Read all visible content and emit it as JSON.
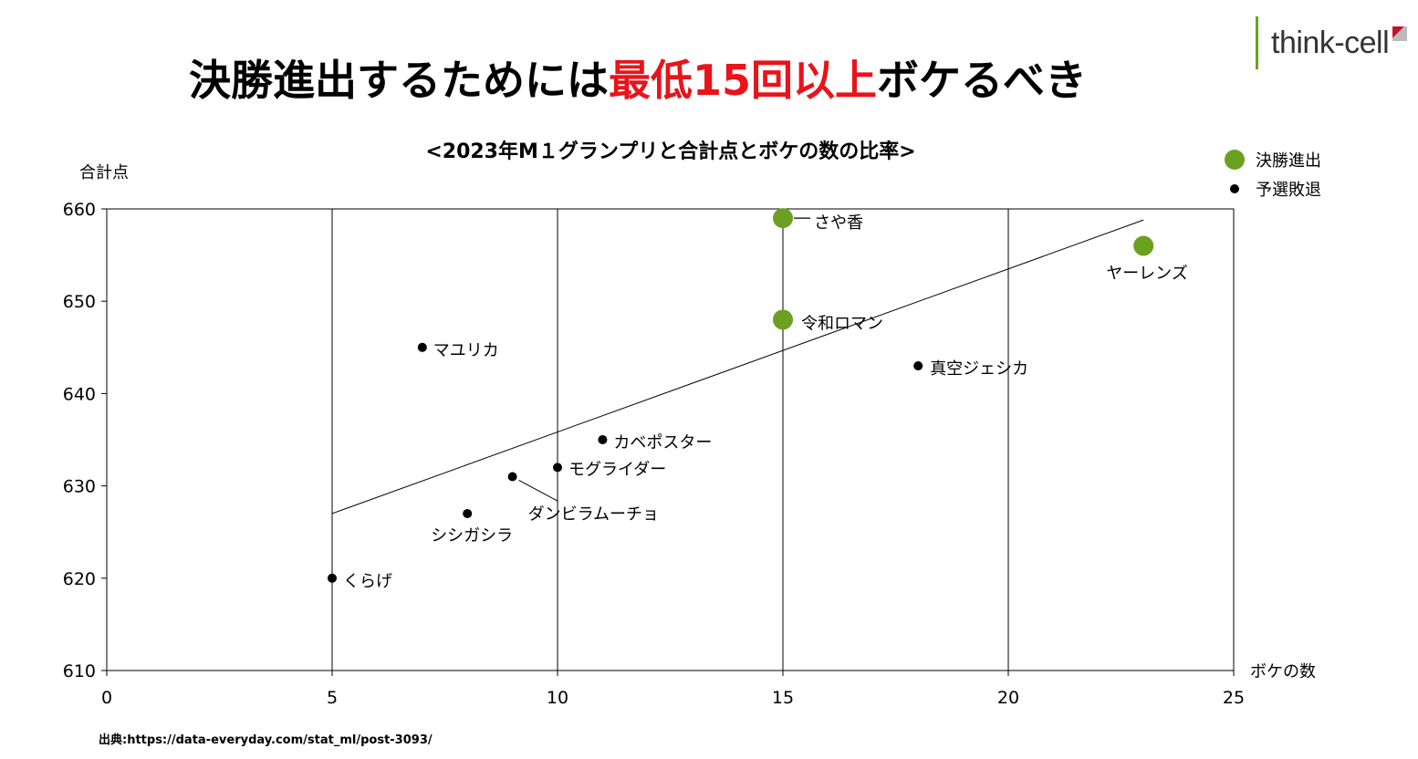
{
  "header": {
    "title_prefix": "決勝進出するためには",
    "title_highlight": "最低15回以上",
    "title_suffix": "ボケるべき",
    "subtitle": "<2023年M１グランプリと合計点とボケの数の比率>",
    "logo_text": "think-cell"
  },
  "source": "出典:https://data-everyday.com/stat_ml/post-3093/",
  "colors": {
    "finalist": "#6aa121",
    "eliminated": "#000000",
    "accent": "#e8141b"
  },
  "chart_data": {
    "type": "scatter",
    "title": "<2023年M１グランプリと合計点とボケの数の比率>",
    "xlabel": "ボケの数",
    "ylabel": "合計点",
    "xlim": [
      0,
      25
    ],
    "ylim": [
      610,
      660
    ],
    "xticks": [
      0,
      5,
      10,
      15,
      20,
      25
    ],
    "yticks": [
      610,
      620,
      630,
      640,
      650,
      660
    ],
    "grid": "vertical",
    "legend_position": "top-right",
    "series": [
      {
        "name": "決勝進出",
        "points": [
          {
            "label": "さや香",
            "x": 15,
            "y": 659
          },
          {
            "label": "ヤーレンズ",
            "x": 23,
            "y": 656
          },
          {
            "label": "令和ロマン",
            "x": 15,
            "y": 648
          }
        ]
      },
      {
        "name": "予選敗退",
        "points": [
          {
            "label": "マユリカ",
            "x": 7,
            "y": 645
          },
          {
            "label": "真空ジェシカ",
            "x": 18,
            "y": 643
          },
          {
            "label": "カベポスター",
            "x": 11,
            "y": 635
          },
          {
            "label": "モグライダー",
            "x": 10,
            "y": 632
          },
          {
            "label": "ダンビラムーチョ",
            "x": 9,
            "y": 631
          },
          {
            "label": "シシガシラ",
            "x": 8,
            "y": 627
          },
          {
            "label": "くらげ",
            "x": 5,
            "y": 620
          }
        ]
      }
    ],
    "trendline": {
      "x": [
        5,
        23
      ],
      "y": [
        627,
        658.8
      ]
    }
  }
}
